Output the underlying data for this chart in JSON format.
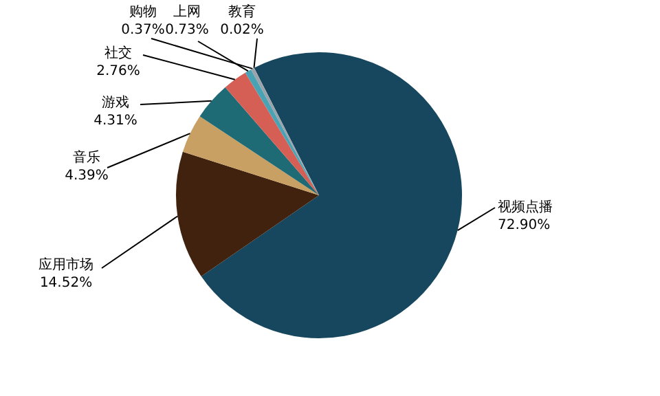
{
  "chart_data": {
    "type": "pie",
    "categories": [
      "视频点播",
      "应用市场",
      "音乐",
      "游戏",
      "社交",
      "上网",
      "购物",
      "教育"
    ],
    "values": [
      72.9,
      14.52,
      4.39,
      4.31,
      2.76,
      0.73,
      0.37,
      0.02
    ],
    "value_labels": [
      "72.90%",
      "14.52%",
      "4.39%",
      "4.31%",
      "2.76%",
      "0.73%",
      "0.37%",
      "0.02%"
    ],
    "colors": [
      "#17475e",
      "#41220f",
      "#c9a063",
      "#1f6b75",
      "#d65f55",
      "#4aa3b5",
      "#9aa3aa",
      "#bcbcbc"
    ],
    "legend": false
  }
}
